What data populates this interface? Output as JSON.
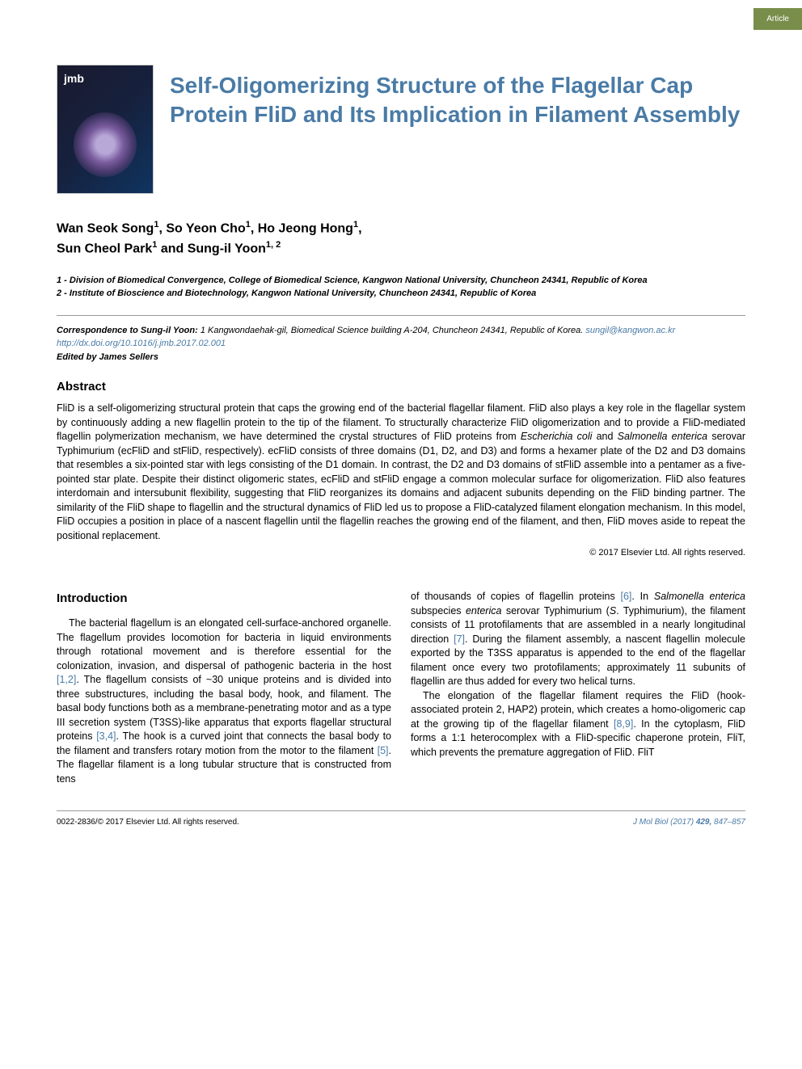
{
  "tab": {
    "label": "Article",
    "bg_color": "#788e4a"
  },
  "journal_cover": {
    "abbrev": "jmb"
  },
  "title": "Self-Oligomerizing Structure of the Flagellar Cap Protein FliD and Its Implication in Filament Assembly",
  "title_color": "#4a7ba6",
  "authors_line1": "Wan Seok Song",
  "authors_sup1": "1",
  "authors_line2": ", So Yeon Cho",
  "authors_sup2": "1",
  "authors_line3": ", Ho Jeong Hong",
  "authors_sup3": "1",
  "authors_line4": ",",
  "authors_line5": "Sun Cheol Park",
  "authors_sup5": "1",
  "authors_line6": " and Sung-il Yoon",
  "authors_sup6": "1, 2",
  "affil1_prefix": "1 - ",
  "affil1": "Division of Biomedical Convergence, College of Biomedical Science, Kangwon National University, Chuncheon 24341, Republic of Korea",
  "affil2_prefix": "2 - ",
  "affil2": "Institute of Bioscience and Biotechnology, Kangwon National University, Chuncheon 24341, Republic of Korea",
  "correspondence_label": "Correspondence to Sung-il Yoon:",
  "correspondence_text": " 1 Kangwondaehak-gil, Biomedical Science building A-204, Chuncheon 24341, Republic of Korea. ",
  "email": "sungil@kangwon.ac.kr",
  "doi": "http://dx.doi.org/10.1016/j.jmb.2017.02.001",
  "editor_label": "Edited by James Sellers",
  "abstract_heading": "Abstract",
  "abstract_p1a": "FliD is a self-oligomerizing structural protein that caps the growing end of the bacterial flagellar filament. FliD also plays a key role in the flagellar system by continuously adding a new flagellin protein to the tip of the filament. To structurally characterize FliD oligomerization and to provide a FliD-mediated flagellin polymerization mechanism, we have determined the crystal structures of FliD proteins from ",
  "abstract_i1": "Escherichia coli",
  "abstract_p1b": " and ",
  "abstract_i2": "Salmonella enterica",
  "abstract_p1c": " serovar Typhimurium (ecFliD and stFliD, respectively). ecFliD consists of three domains (D1, D2, and D3) and forms a hexamer plate of the D2 and D3 domains that resembles a six-pointed star with legs consisting of the D1 domain. In contrast, the D2 and D3 domains of stFliD assemble into a pentamer as a five-pointed star plate. Despite their distinct oligomeric states, ecFliD and stFliD engage a common molecular surface for oligomerization. FliD also features interdomain and intersubunit flexibility, suggesting that FliD reorganizes its domains and adjacent subunits depending on the FliD binding partner. The similarity of the FliD shape to flagellin and the structural dynamics of FliD led us to propose a FliD-catalyzed filament elongation mechanism. In this model, FliD occupies a position in place of a nascent flagellin until the flagellin reaches the growing end of the filament, and then, FliD moves aside to repeat the positional replacement.",
  "copyright": "© 2017 Elsevier Ltd. All rights reserved.",
  "intro_heading": "Introduction",
  "col1_p1a": "The bacterial flagellum is an elongated cell-surface-anchored organelle. The flagellum provides locomotion for bacteria in liquid environments through rotational movement and is therefore essential for the colonization, invasion, and dispersal of pathogenic bacteria in the host ",
  "col1_ref1": "[1,2]",
  "col1_p1b": ". The flagellum consists of ~30 unique proteins and is divided into three substructures, including the basal body, hook, and filament. The basal body functions both as a membrane-penetrating motor and as a type III secretion system (T3SS)-like apparatus that exports flagellar structural proteins ",
  "col1_ref2": "[3,4]",
  "col1_p1c": ". The hook is a curved joint that connects the basal body to the filament and transfers rotary motion from the motor to the filament ",
  "col1_ref3": "[5]",
  "col1_p1d": ". The flagellar filament is a long tubular structure that is constructed from tens",
  "col2_p1a": "of thousands of copies of flagellin proteins ",
  "col2_ref1": "[6]",
  "col2_p1b": ". In ",
  "col2_i1": "Salmonella enterica",
  "col2_p1c": " subspecies ",
  "col2_i2": "enterica",
  "col2_p1d": " serovar Typhimurium (",
  "col2_i3": "S",
  "col2_p1e": ". Typhimurium), the filament consists of 11 protofilaments that are assembled in a nearly longitudinal direction ",
  "col2_ref2": "[7]",
  "col2_p1f": ". During the filament assembly, a nascent flagellin molecule exported by the T3SS apparatus is appended to the end of the flagellar filament once every two protofilaments; approximately 11 subunits of flagellin are thus added for every two helical turns.",
  "col2_p2a": "The elongation of the flagellar filament requires the FliD (hook-associated protein 2, HAP2) protein, which creates a homo-oligomeric cap at the growing tip of the flagellar filament ",
  "col2_ref3": "[8,9]",
  "col2_p2b": ". In the cytoplasm, FliD forms a 1:1 heterocomplex with a FliD-specific chaperone protein, FliT, which prevents the premature aggregation of FliD. FliT",
  "footer_left": "0022-2836/© 2017 Elsevier Ltd. All rights reserved.",
  "footer_right_journal": "J Mol Biol",
  "footer_right_rest": " (2017) ",
  "footer_right_vol": "429,",
  "footer_right_pages": " 847–857",
  "link_color": "#4a7ba6"
}
